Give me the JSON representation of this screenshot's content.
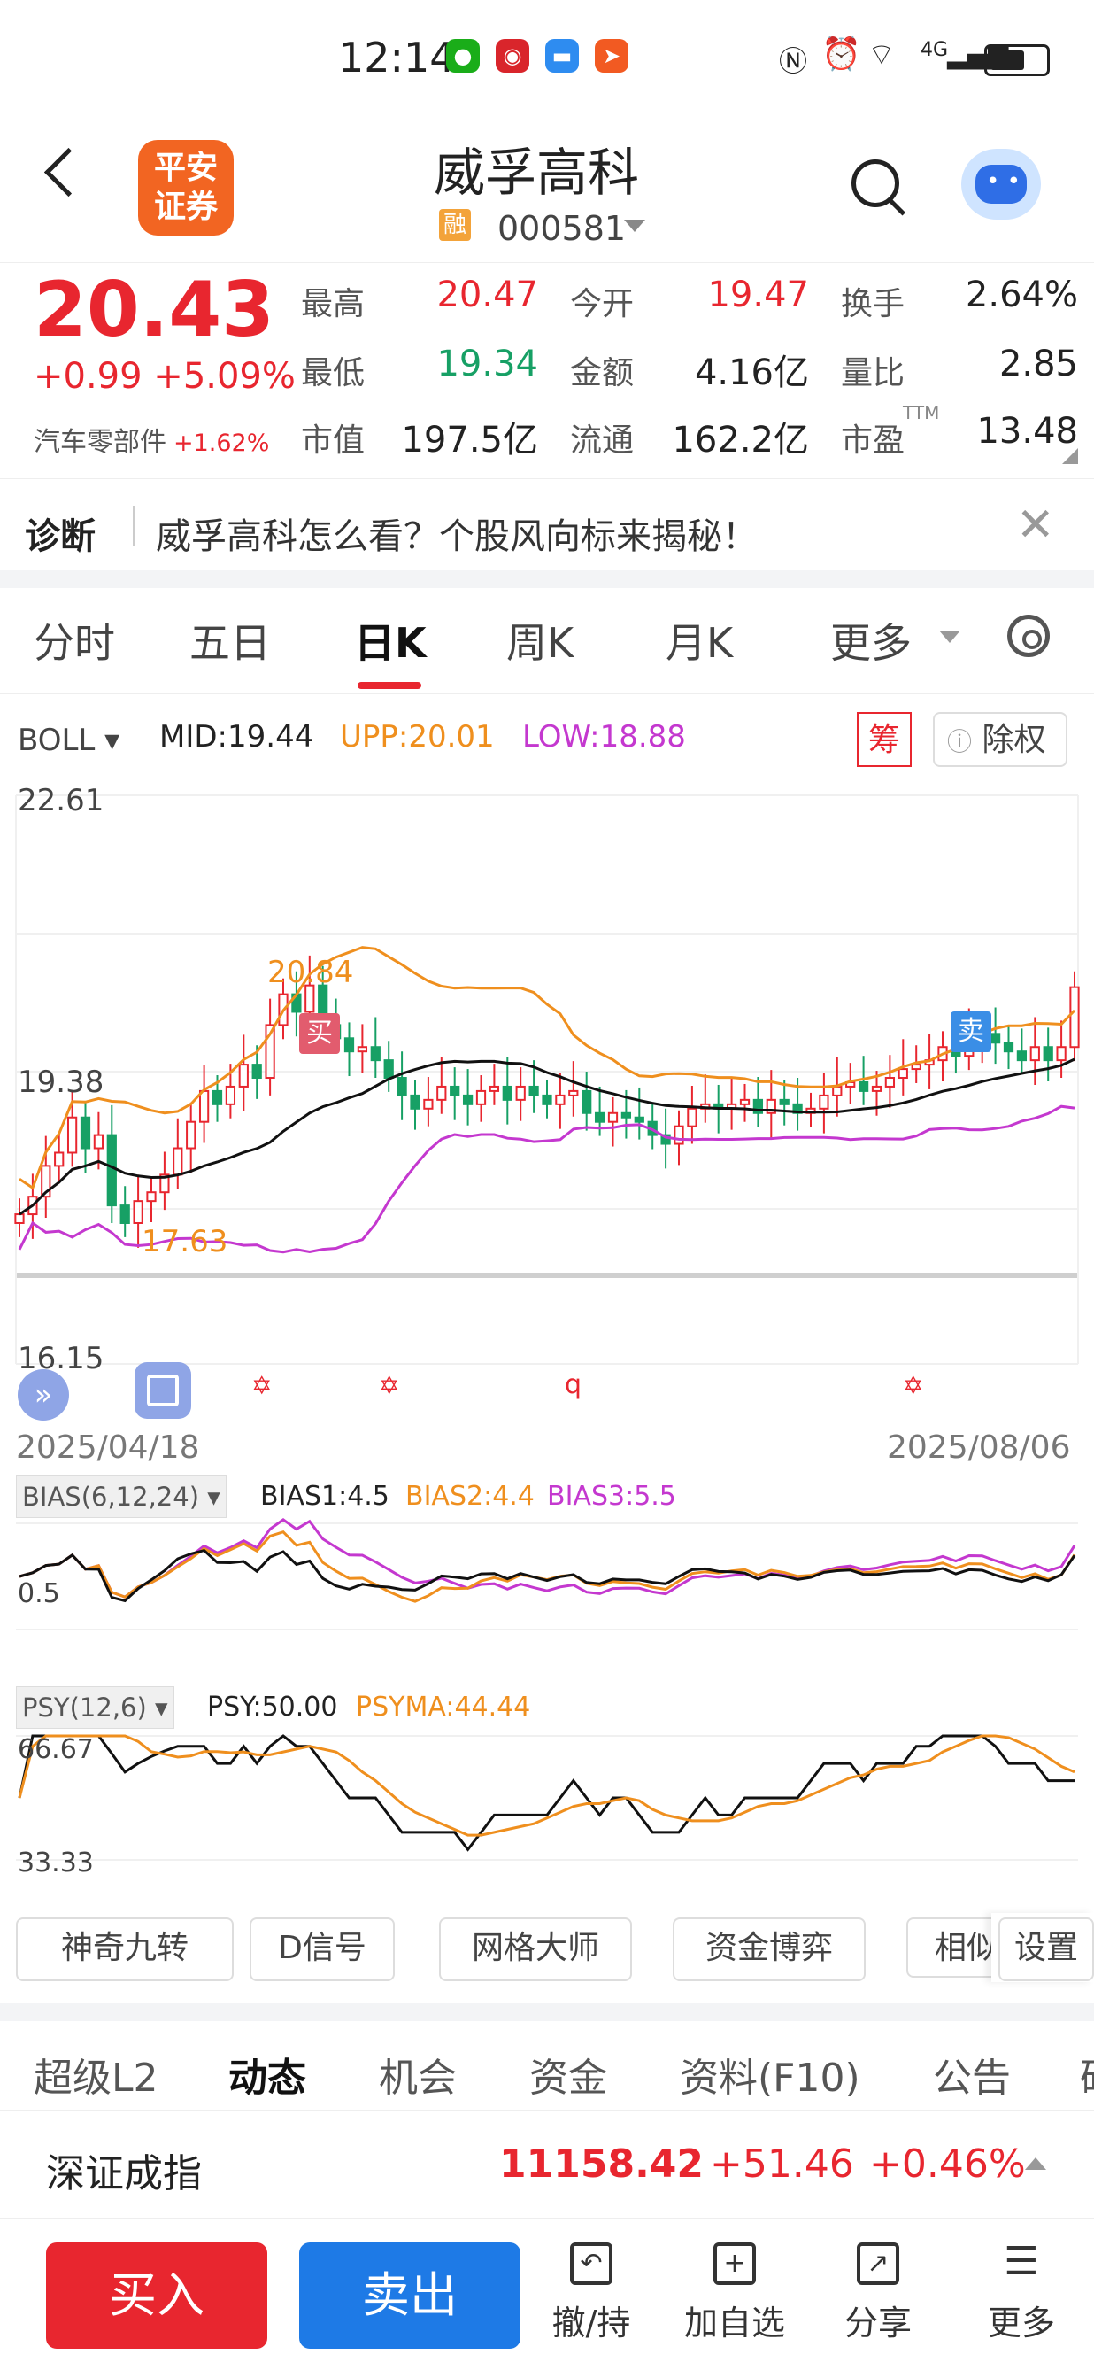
{
  "status_bar": {
    "time": "12:14",
    "network": "4G",
    "app_icons": [
      "wechat-icon",
      "netease-icon",
      "message-icon",
      "dingtalk-icon"
    ]
  },
  "header": {
    "broker_logo": "平安\n证券",
    "title": "威孚高科",
    "margin_badge": "融",
    "code": "000581"
  },
  "quote": {
    "price": "20.43",
    "change": "+0.99",
    "change_pct": "+5.09%",
    "sector": "汽车零部件",
    "sector_pct": "+1.62%",
    "stats": [
      {
        "label": "最高",
        "value": "20.47",
        "color": "#e8262f"
      },
      {
        "label": "今开",
        "value": "19.47",
        "color": "#e8262f"
      },
      {
        "label": "换手",
        "value": "2.64%",
        "color": "#222222"
      },
      {
        "label": "最低",
        "value": "19.34",
        "color": "#17a065"
      },
      {
        "label": "金额",
        "value": "4.16亿",
        "color": "#222222"
      },
      {
        "label": "量比",
        "value": "2.85",
        "color": "#222222"
      },
      {
        "label": "市值",
        "value": "197.5亿",
        "color": "#222222"
      },
      {
        "label": "流通",
        "value": "162.2亿",
        "color": "#222222"
      },
      {
        "label": "市盈",
        "value": "13.48",
        "color": "#222222"
      }
    ],
    "ttm_label": "TTM"
  },
  "diagnosis": {
    "tag": "诊断",
    "text": "威孚高科怎么看？个股风向标来揭秘！"
  },
  "chart_tabs": [
    "分时",
    "五日",
    "日K",
    "周K",
    "月K",
    "更多"
  ],
  "active_tab": "日K",
  "boll": {
    "label": "BOLL",
    "mid": "MID:19.44",
    "upp": "UPP:20.01",
    "low": "LOW:18.88",
    "chip_btn": "筹",
    "exright_btn": "除权"
  },
  "kline_labels": {
    "y_top": "22.61",
    "y_mid": "19.38",
    "y_low": "16.15",
    "max_marker": "20.84",
    "min_marker": "17.63",
    "buy": "买",
    "sell": "卖",
    "date_start": "2025/04/18",
    "date_end": "2025/08/06",
    "event_q": "q"
  },
  "chart_data": {
    "type": "candlestick",
    "title": "",
    "ylim": [
      16.15,
      22.61
    ],
    "x_range": [
      "2025/04/18",
      "2025/08/06"
    ],
    "indicator": "BOLL",
    "boll_latest": {
      "MID": 19.44,
      "UPP": 20.01,
      "LOW": 18.88
    },
    "period_high": 20.84,
    "period_low": 17.63,
    "close_approx": [
      17.85,
      18.05,
      18.4,
      18.55,
      18.95,
      18.6,
      18.75,
      17.95,
      17.75,
      18.0,
      18.1,
      18.3,
      18.6,
      18.9,
      19.25,
      19.1,
      19.3,
      19.55,
      19.4,
      20.0,
      20.35,
      20.15,
      20.45,
      20.0,
      19.85,
      19.7,
      19.75,
      19.6,
      19.4,
      19.2,
      19.05,
      19.15,
      19.3,
      19.2,
      19.1,
      19.25,
      19.3,
      19.15,
      19.3,
      19.2,
      19.1,
      19.2,
      19.25,
      19.0,
      18.9,
      19.0,
      18.95,
      18.9,
      18.75,
      18.65,
      18.85,
      19.05,
      19.1,
      19.05,
      19.1,
      19.15,
      19.0,
      19.15,
      19.1,
      19.0,
      19.05,
      19.2,
      19.3,
      19.35,
      19.25,
      19.3,
      19.4,
      19.5,
      19.55,
      19.6,
      19.75,
      19.65,
      19.85,
      19.9,
      19.8,
      19.7,
      19.6,
      19.75,
      19.6,
      19.75,
      20.43
    ],
    "bias": {
      "label": "BIAS(6,12,24)",
      "BIAS1": "BIAS1:4.5",
      "BIAS2": "BIAS2:4.4",
      "BIAS3": "BIAS3:5.5",
      "y_label": "0.5"
    },
    "psy": {
      "label": "PSY(12,6)",
      "PSY": "PSY:50.00",
      "PSYMA": "PSYMA:44.44",
      "y_top": "66.67",
      "y_bottom": "33.33"
    }
  },
  "tools": [
    "神奇九转",
    "D信号",
    "网格大师",
    "资金博弈",
    "相似",
    "设置"
  ],
  "bottom_tabs": [
    "超级L2",
    "动态",
    "机会",
    "资金",
    "资料(F10)",
    "公告",
    "研"
  ],
  "active_bottom_tab": "动态",
  "index": {
    "name": "深证成指",
    "value": "11158.42",
    "change": "+51.46",
    "pct": "+0.46%"
  },
  "actions": {
    "buy": "买入",
    "sell": "卖出",
    "withdraw": "撤/持",
    "add_watch": "加自选",
    "share": "分享",
    "more": "更多"
  },
  "colors": {
    "up": "#e8262f",
    "down": "#17a065",
    "buy_btn": "#e8262f",
    "sell_btn": "#1e7ae6",
    "upp": "#ef8f1e",
    "low": "#c438cf"
  }
}
